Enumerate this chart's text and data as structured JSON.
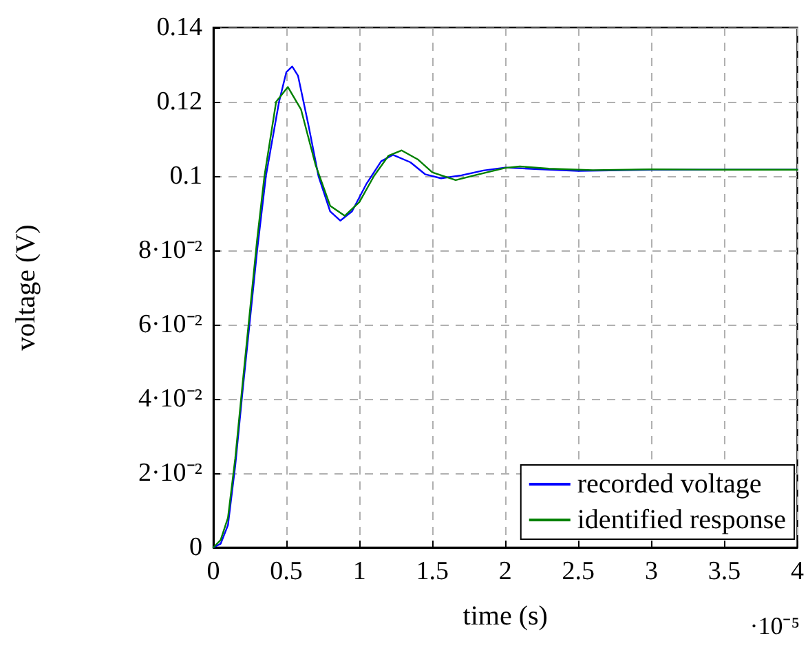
{
  "chart_data": {
    "type": "line",
    "xlabel": "time (s)",
    "ylabel": "voltage (V)",
    "xlim": [
      0,
      4
    ],
    "xticks": [
      0,
      0.5,
      1,
      1.5,
      2,
      2.5,
      3,
      3.5,
      4
    ],
    "ylim": [
      0,
      0.14
    ],
    "yticks": [
      0,
      {
        "value": 0.02,
        "label": "2·10⁻²"
      },
      {
        "value": 0.04,
        "label": "4·10⁻²"
      },
      {
        "value": 0.06,
        "label": "6·10⁻²"
      },
      {
        "value": 0.08,
        "label": "8·10⁻²"
      },
      0.1,
      0.12,
      0.14
    ],
    "grid": true,
    "legend": "bottom right",
    "marker": "none",
    "line_style": "solid",
    "annotations": [
      "·10⁻⁵"
    ],
    "series": [
      {
        "name": "recorded voltage",
        "color": "#0000ff",
        "x": [
          0,
          0.05,
          0.1,
          0.15,
          0.2,
          0.3,
          0.36,
          0.45,
          0.5,
          0.54,
          0.58,
          0.65,
          0.72,
          0.8,
          0.87,
          0.95,
          1.05,
          1.15,
          1.23,
          1.35,
          1.45,
          1.56,
          1.7,
          1.85,
          2.0,
          2.2,
          2.5,
          3.0,
          3.5,
          4.0
        ],
        "values": [
          0,
          0.001,
          0.006,
          0.022,
          0.042,
          0.08,
          0.1,
          0.12,
          0.128,
          0.1295,
          0.127,
          0.114,
          0.1,
          0.0905,
          0.088,
          0.0905,
          0.098,
          0.104,
          0.1057,
          0.1037,
          0.1005,
          0.0994,
          0.1002,
          0.1015,
          0.1023,
          0.1019,
          0.1014,
          0.1017,
          0.1017,
          0.1017
        ]
      },
      {
        "name": "identified response",
        "color": "#008000",
        "x": [
          0,
          0.05,
          0.1,
          0.15,
          0.2,
          0.3,
          0.35,
          0.43,
          0.51,
          0.6,
          0.7,
          0.8,
          0.9,
          1.0,
          1.1,
          1.2,
          1.29,
          1.4,
          1.5,
          1.66,
          1.8,
          2.0,
          2.1,
          2.3,
          2.6,
          3.0,
          3.5,
          4.0
        ],
        "values": [
          0,
          0.002,
          0.008,
          0.024,
          0.044,
          0.083,
          0.1,
          0.12,
          0.124,
          0.118,
          0.103,
          0.092,
          0.0893,
          0.093,
          0.1,
          0.1055,
          0.1069,
          0.1045,
          0.101,
          0.0989,
          0.1003,
          0.1022,
          0.1026,
          0.102,
          0.1016,
          0.1018,
          0.1017,
          0.1017
        ]
      }
    ]
  }
}
